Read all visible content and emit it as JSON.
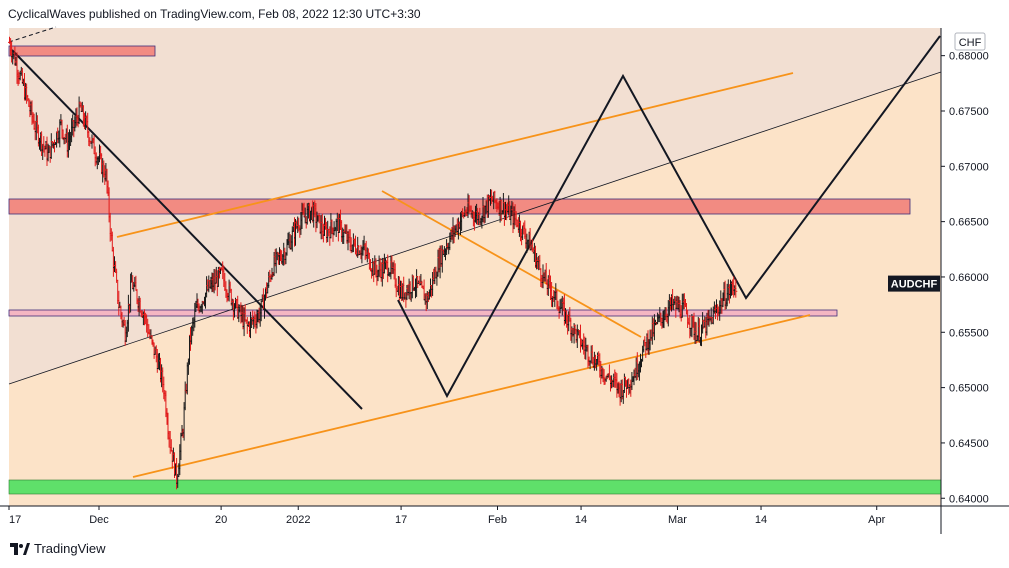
{
  "header": {
    "publisher_line": "CyclicalWaves published on TradingView.com, Feb 08, 2022 12:30 UTC+3:30"
  },
  "footer": {
    "brand": "TradingView",
    "logo_icon": "tradingview-logo-icon"
  },
  "colors": {
    "background": "#fce3c8",
    "upper_zone": "#f2dfd2",
    "candle_up": "#1a1a1a",
    "candle_down": "#e01b1b",
    "resistance_zone": "#f28b82",
    "mid_zone": "#f4b6c2",
    "support_zone": "#5fe06a",
    "channel_line": "#f7931a",
    "projection_line": "#131722"
  },
  "chart_data": {
    "type": "line",
    "symbol": "AUDCHF",
    "currency": "CHF",
    "ylim": [
      0.6393,
      0.6825
    ],
    "y_ticks": [
      "0.68000",
      "0.67500",
      "0.67000",
      "0.66500",
      "0.66000",
      "0.65500",
      "0.65000",
      "0.64500",
      "0.64000"
    ],
    "y_tick_values": [
      0.68,
      0.675,
      0.67,
      0.665,
      0.66,
      0.655,
      0.65,
      0.645,
      0.64
    ],
    "x_ticks": [
      "17",
      "Dec",
      "20",
      "2022",
      "17",
      "Feb",
      "14",
      "Mar",
      "14",
      "Apr"
    ],
    "x_tick_dates": [
      "2021-11-17",
      "2021-12-01",
      "2021-12-20",
      "2022-01-01",
      "2022-01-17",
      "2022-02-01",
      "2022-02-14",
      "2022-03-01",
      "2022-03-14",
      "2022-04-01"
    ],
    "x_range": [
      "2021-11-17",
      "2022-04-11"
    ],
    "price_label": "AUDCHF",
    "last_price": 0.6594,
    "price_path": [
      [
        "2021-11-17",
        0.6812
      ],
      [
        "2021-11-19",
        0.6775
      ],
      [
        "2021-11-21",
        0.6735
      ],
      [
        "2021-11-23",
        0.671
      ],
      [
        "2021-11-25",
        0.6738
      ],
      [
        "2021-11-26",
        0.672
      ],
      [
        "2021-11-28",
        0.6752
      ],
      [
        "2021-11-30",
        0.6718
      ],
      [
        "2021-12-02",
        0.6692
      ],
      [
        "2021-12-03",
        0.6622
      ],
      [
        "2021-12-04",
        0.6575
      ],
      [
        "2021-12-05",
        0.655
      ],
      [
        "2021-12-06",
        0.6595
      ],
      [
        "2021-12-07",
        0.658
      ],
      [
        "2021-12-08",
        0.6565
      ],
      [
        "2021-12-09",
        0.6542
      ],
      [
        "2021-12-10",
        0.6525
      ],
      [
        "2021-12-11",
        0.65
      ],
      [
        "2021-12-12",
        0.645
      ],
      [
        "2021-12-13",
        0.6418
      ],
      [
        "2021-12-14",
        0.6465
      ],
      [
        "2021-12-15",
        0.654
      ],
      [
        "2021-12-16",
        0.657
      ],
      [
        "2021-12-18",
        0.659
      ],
      [
        "2021-12-20",
        0.6602
      ],
      [
        "2021-12-22",
        0.6575
      ],
      [
        "2021-12-24",
        0.6555
      ],
      [
        "2021-12-26",
        0.6568
      ],
      [
        "2021-12-28",
        0.661
      ],
      [
        "2021-12-30",
        0.6625
      ],
      [
        "2022-01-01",
        0.665
      ],
      [
        "2022-01-03",
        0.666
      ],
      [
        "2022-01-05",
        0.664
      ],
      [
        "2022-01-07",
        0.6648
      ],
      [
        "2022-01-09",
        0.663
      ],
      [
        "2022-01-11",
        0.6625
      ],
      [
        "2022-01-13",
        0.6605
      ],
      [
        "2022-01-15",
        0.661
      ],
      [
        "2022-01-17",
        0.6585
      ],
      [
        "2022-01-19",
        0.6595
      ],
      [
        "2022-01-21",
        0.658
      ],
      [
        "2022-01-23",
        0.6618
      ],
      [
        "2022-01-25",
        0.664
      ],
      [
        "2022-01-27",
        0.666
      ],
      [
        "2022-01-29",
        0.6655
      ],
      [
        "2022-01-31",
        0.667
      ],
      [
        "2022-02-02",
        0.6662
      ],
      [
        "2022-02-04",
        0.665
      ],
      [
        "2022-02-06",
        0.663
      ],
      [
        "2022-02-08",
        0.66
      ],
      [
        "2022-02-10",
        0.658
      ],
      [
        "2022-02-12",
        0.656
      ],
      [
        "2022-02-14",
        0.654
      ],
      [
        "2022-02-16",
        0.6525
      ],
      [
        "2022-02-18",
        0.651
      ],
      [
        "2022-02-20",
        0.6498
      ],
      [
        "2022-02-22",
        0.651
      ],
      [
        "2022-02-24",
        0.654
      ],
      [
        "2022-02-26",
        0.656
      ],
      [
        "2022-02-28",
        0.6575
      ],
      [
        "2022-03-02",
        0.657
      ],
      [
        "2022-03-04",
        0.6548
      ],
      [
        "2022-03-06",
        0.656
      ],
      [
        "2022-03-08",
        0.658
      ],
      [
        "2022-03-10",
        0.6594
      ]
    ]
  }
}
